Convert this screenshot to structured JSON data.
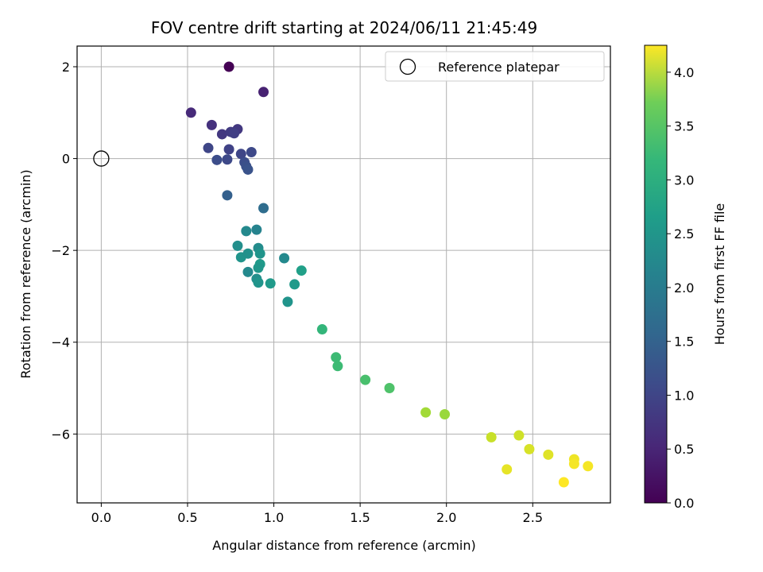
{
  "chart_data": {
    "type": "scatter",
    "title": "FOV centre drift starting at 2024/06/11 21:45:49",
    "xlabel": "Angular distance from reference (arcmin)",
    "ylabel": "Rotation from reference (arcmin)",
    "xlim": [
      -0.14,
      2.95
    ],
    "ylim": [
      -7.5,
      2.45
    ],
    "xticks": [
      0.0,
      0.5,
      1.0,
      1.5,
      2.0,
      2.5
    ],
    "xtick_labels": [
      "0.0",
      "0.5",
      "1.0",
      "1.5",
      "2.0",
      "2.5"
    ],
    "yticks": [
      2,
      0,
      -2,
      -4,
      -6
    ],
    "ytick_labels": [
      "2",
      "0",
      "−2",
      "−4",
      "−6"
    ],
    "grid": true,
    "legend": {
      "placement": "top-right",
      "entries": [
        {
          "label": "Reference platepar",
          "marker": "open-circle"
        }
      ]
    },
    "reference_point": {
      "x": 0.0,
      "y": 0.0
    },
    "colorbar": {
      "label": "Hours from first FF file",
      "range": [
        0.0,
        4.25
      ],
      "ticks": [
        0.0,
        0.5,
        1.0,
        1.5,
        2.0,
        2.5,
        3.0,
        3.5,
        4.0
      ],
      "tick_labels": [
        "0.0",
        "0.5",
        "1.0",
        "1.5",
        "2.0",
        "2.5",
        "3.0",
        "3.5",
        "4.0"
      ],
      "colormap": "viridis"
    },
    "points": [
      {
        "x": 0.74,
        "y": 2.0,
        "c": 0.0
      },
      {
        "x": 0.94,
        "y": 1.45,
        "c": 0.4
      },
      {
        "x": 0.52,
        "y": 1.0,
        "c": 0.5
      },
      {
        "x": 0.64,
        "y": 0.73,
        "c": 0.6
      },
      {
        "x": 0.7,
        "y": 0.53,
        "c": 0.7
      },
      {
        "x": 0.75,
        "y": 0.58,
        "c": 0.75
      },
      {
        "x": 0.79,
        "y": 0.64,
        "c": 0.7
      },
      {
        "x": 0.77,
        "y": 0.55,
        "c": 0.8
      },
      {
        "x": 0.62,
        "y": 0.23,
        "c": 0.9
      },
      {
        "x": 0.74,
        "y": 0.2,
        "c": 0.85
      },
      {
        "x": 0.81,
        "y": 0.1,
        "c": 0.9
      },
      {
        "x": 0.87,
        "y": 0.14,
        "c": 0.95
      },
      {
        "x": 0.67,
        "y": -0.03,
        "c": 1.0
      },
      {
        "x": 0.73,
        "y": -0.02,
        "c": 0.95
      },
      {
        "x": 0.83,
        "y": -0.08,
        "c": 1.0
      },
      {
        "x": 0.84,
        "y": -0.17,
        "c": 1.05
      },
      {
        "x": 0.85,
        "y": -0.24,
        "c": 1.1
      },
      {
        "x": 0.73,
        "y": -0.8,
        "c": 1.3
      },
      {
        "x": 0.94,
        "y": -1.08,
        "c": 1.5
      },
      {
        "x": 0.84,
        "y": -1.58,
        "c": 2.0
      },
      {
        "x": 0.9,
        "y": -1.55,
        "c": 1.9
      },
      {
        "x": 0.79,
        "y": -1.9,
        "c": 2.1
      },
      {
        "x": 0.81,
        "y": -2.15,
        "c": 2.2
      },
      {
        "x": 0.85,
        "y": -2.07,
        "c": 2.15
      },
      {
        "x": 0.91,
        "y": -1.95,
        "c": 2.05
      },
      {
        "x": 0.92,
        "y": -2.07,
        "c": 2.2
      },
      {
        "x": 0.92,
        "y": -2.3,
        "c": 2.3
      },
      {
        "x": 0.91,
        "y": -2.38,
        "c": 2.25
      },
      {
        "x": 0.85,
        "y": -2.47,
        "c": 2.0
      },
      {
        "x": 0.9,
        "y": -2.62,
        "c": 2.1
      },
      {
        "x": 0.91,
        "y": -2.7,
        "c": 2.2
      },
      {
        "x": 0.98,
        "y": -2.72,
        "c": 2.3
      },
      {
        "x": 1.06,
        "y": -2.17,
        "c": 2.0
      },
      {
        "x": 1.16,
        "y": -2.44,
        "c": 2.4
      },
      {
        "x": 1.12,
        "y": -2.74,
        "c": 2.3
      },
      {
        "x": 1.08,
        "y": -3.12,
        "c": 2.2
      },
      {
        "x": 1.28,
        "y": -3.72,
        "c": 2.8
      },
      {
        "x": 1.36,
        "y": -4.33,
        "c": 2.9
      },
      {
        "x": 1.37,
        "y": -4.52,
        "c": 2.9
      },
      {
        "x": 1.53,
        "y": -4.82,
        "c": 3.0
      },
      {
        "x": 1.67,
        "y": -5.0,
        "c": 3.05
      },
      {
        "x": 1.88,
        "y": -5.53,
        "c": 3.65
      },
      {
        "x": 1.99,
        "y": -5.57,
        "c": 3.6
      },
      {
        "x": 2.26,
        "y": -6.07,
        "c": 3.9
      },
      {
        "x": 2.42,
        "y": -6.03,
        "c": 3.95
      },
      {
        "x": 2.48,
        "y": -6.33,
        "c": 4.0
      },
      {
        "x": 2.59,
        "y": -6.45,
        "c": 4.05
      },
      {
        "x": 2.35,
        "y": -6.77,
        "c": 4.1
      },
      {
        "x": 2.74,
        "y": -6.55,
        "c": 4.15
      },
      {
        "x": 2.74,
        "y": -6.65,
        "c": 4.2
      },
      {
        "x": 2.82,
        "y": -6.7,
        "c": 4.2
      },
      {
        "x": 2.68,
        "y": -7.05,
        "c": 4.25
      }
    ]
  }
}
